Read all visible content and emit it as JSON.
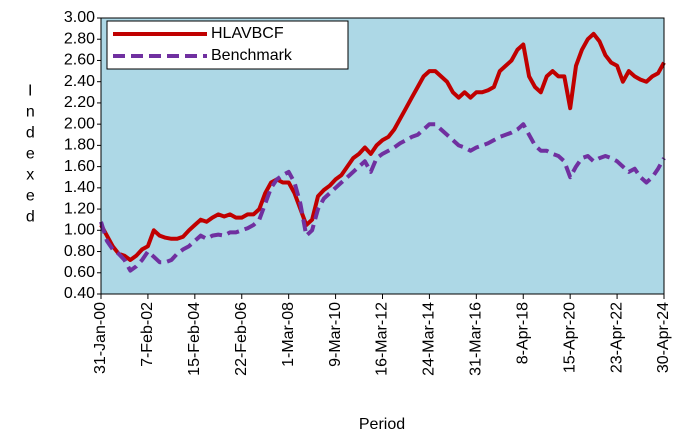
{
  "chart_data": {
    "type": "line",
    "y_label": "Indexed",
    "x_label": "Period",
    "categories": [
      "31-Jan-00",
      null,
      null,
      null,
      null,
      null,
      null,
      null,
      "7-Feb-02",
      null,
      null,
      null,
      null,
      null,
      null,
      null,
      "15-Feb-04",
      null,
      null,
      null,
      null,
      null,
      null,
      null,
      "22-Feb-06",
      null,
      null,
      null,
      null,
      null,
      null,
      null,
      "1-Mar-08",
      null,
      null,
      null,
      null,
      null,
      null,
      null,
      "9-Mar-10",
      null,
      null,
      null,
      null,
      null,
      null,
      null,
      "16-Mar-12",
      null,
      null,
      null,
      null,
      null,
      null,
      null,
      "24-Mar-14",
      null,
      null,
      null,
      null,
      null,
      null,
      null,
      "31-Mar-16",
      null,
      null,
      null,
      null,
      null,
      null,
      null,
      "8-Apr-18",
      null,
      null,
      null,
      null,
      null,
      null,
      null,
      "15-Apr-20",
      null,
      null,
      null,
      null,
      null,
      null,
      null,
      "23-Apr-22",
      null,
      null,
      null,
      null,
      null,
      null,
      null,
      "30-Apr-24"
    ],
    "series": [
      {
        "name": "HLAVBCF",
        "color": "#c00000",
        "dash": false,
        "values": [
          1.05,
          0.95,
          0.85,
          0.78,
          0.76,
          0.72,
          0.76,
          0.82,
          0.85,
          1.0,
          0.95,
          0.93,
          0.92,
          0.92,
          0.94,
          1.0,
          1.05,
          1.1,
          1.08,
          1.12,
          1.15,
          1.13,
          1.15,
          1.12,
          1.12,
          1.15,
          1.15,
          1.2,
          1.35,
          1.45,
          1.48,
          1.45,
          1.45,
          1.35,
          1.2,
          1.05,
          1.1,
          1.32,
          1.38,
          1.42,
          1.48,
          1.52,
          1.6,
          1.68,
          1.72,
          1.78,
          1.72,
          1.8,
          1.85,
          1.88,
          1.95,
          2.05,
          2.15,
          2.25,
          2.35,
          2.45,
          2.5,
          2.5,
          2.45,
          2.4,
          2.3,
          2.25,
          2.3,
          2.25,
          2.3,
          2.3,
          2.32,
          2.35,
          2.5,
          2.55,
          2.6,
          2.7,
          2.75,
          2.45,
          2.35,
          2.3,
          2.45,
          2.5,
          2.45,
          2.45,
          2.15,
          2.55,
          2.7,
          2.8,
          2.85,
          2.78,
          2.65,
          2.58,
          2.55,
          2.4,
          2.5,
          2.45,
          2.42,
          2.4,
          2.45,
          2.48,
          2.58
        ]
      },
      {
        "name": "Benchmark",
        "color": "#7030a0",
        "dash": true,
        "values": [
          1.08,
          0.9,
          0.82,
          0.78,
          0.72,
          0.62,
          0.66,
          0.72,
          0.8,
          0.75,
          0.7,
          0.7,
          0.72,
          0.78,
          0.82,
          0.85,
          0.9,
          0.95,
          0.92,
          0.95,
          0.96,
          0.95,
          0.98,
          0.98,
          1.0,
          1.02,
          1.05,
          1.1,
          1.25,
          1.4,
          1.48,
          1.52,
          1.55,
          1.45,
          1.25,
          0.95,
          1.0,
          1.2,
          1.3,
          1.35,
          1.4,
          1.45,
          1.5,
          1.55,
          1.6,
          1.65,
          1.55,
          1.68,
          1.72,
          1.75,
          1.78,
          1.82,
          1.85,
          1.88,
          1.9,
          1.95,
          2.0,
          2.0,
          1.95,
          1.9,
          1.85,
          1.8,
          1.78,
          1.75,
          1.78,
          1.8,
          1.82,
          1.85,
          1.88,
          1.9,
          1.92,
          1.95,
          2.0,
          1.9,
          1.8,
          1.75,
          1.75,
          1.72,
          1.7,
          1.65,
          1.5,
          1.6,
          1.68,
          1.7,
          1.65,
          1.68,
          1.7,
          1.68,
          1.65,
          1.6,
          1.55,
          1.58,
          1.5,
          1.45,
          1.5,
          1.58,
          1.68
        ]
      }
    ],
    "ylim": [
      0.4,
      3.0
    ],
    "yticks": [
      {
        "value": 0.4,
        "label": "0.40"
      },
      {
        "value": 0.6,
        "label": "0.60"
      },
      {
        "value": 0.8,
        "label": "0.80"
      },
      {
        "value": 1.0,
        "label": "1.00"
      },
      {
        "value": 1.2,
        "label": "1.20"
      },
      {
        "value": 1.4,
        "label": "1.40"
      },
      {
        "value": 1.6,
        "label": "1.60"
      },
      {
        "value": 1.8,
        "label": "1.80"
      },
      {
        "value": 2.0,
        "label": "2.00"
      },
      {
        "value": 2.2,
        "label": "2.20"
      },
      {
        "value": 2.4,
        "label": "2.40"
      },
      {
        "value": 2.6,
        "label": "2.60"
      },
      {
        "value": 2.8,
        "label": "2.80"
      },
      {
        "value": 3.0,
        "label": "3.00"
      }
    ],
    "plot_background": "#add8e6",
    "legend": "upper left",
    "grid": false
  }
}
